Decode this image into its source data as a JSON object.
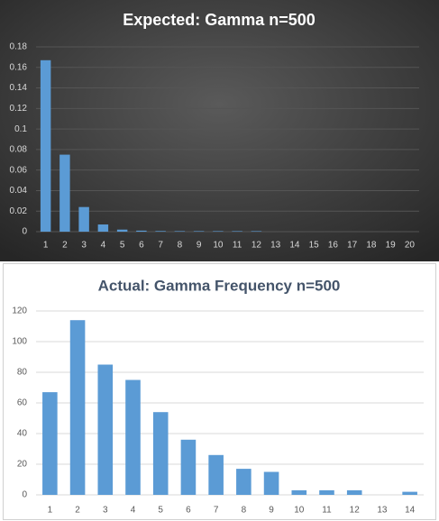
{
  "chart_data": [
    {
      "type": "bar",
      "title": "Expected:  Gamma  n=500",
      "categories": [
        "1",
        "2",
        "3",
        "4",
        "5",
        "6",
        "7",
        "8",
        "9",
        "10",
        "11",
        "12",
        "13",
        "14",
        "15",
        "16",
        "17",
        "18",
        "19",
        "20"
      ],
      "values": [
        0.167,
        0.075,
        0.024,
        0.007,
        0.002,
        0.001,
        0.0006,
        0.0005,
        0.0005,
        0.0005,
        0.0005,
        0.0005,
        0,
        0,
        0,
        0,
        0,
        0,
        0,
        0
      ],
      "color": "#5b9bd5",
      "ylim": [
        0,
        0.18
      ],
      "yticks": [
        0,
        0.02,
        0.04,
        0.06,
        0.08,
        0.1,
        0.12,
        0.14,
        0.16,
        0.18
      ],
      "grid": true
    },
    {
      "type": "bar",
      "title": "Actual: Gamma Frequency n=500",
      "categories": [
        "1",
        "2",
        "3",
        "4",
        "5",
        "6",
        "7",
        "8",
        "9",
        "10",
        "11",
        "12",
        "13",
        "14"
      ],
      "values": [
        67,
        114,
        85,
        75,
        54,
        36,
        26,
        17,
        15,
        3,
        3,
        3,
        0,
        2
      ],
      "color": "#5b9bd5",
      "ylim": [
        0,
        120
      ],
      "yticks": [
        0,
        20,
        40,
        60,
        80,
        100,
        120
      ],
      "grid": true
    }
  ]
}
